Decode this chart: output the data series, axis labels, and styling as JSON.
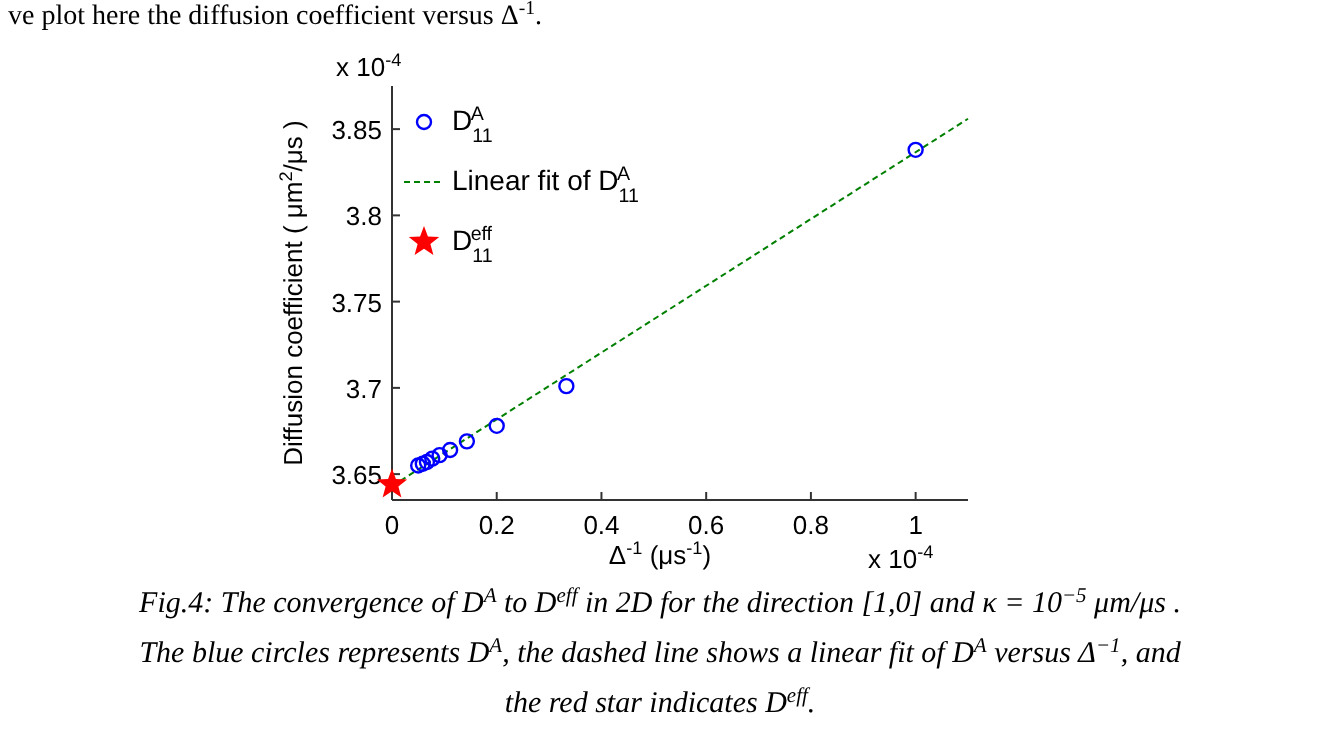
{
  "chart_data": {
    "type": "scatter",
    "xlabel": "Δ$^{-1}$ (μs$^{-1}$)",
    "ylabel": "Diffusion coefficient ( μm$^{2}$/μs )",
    "xlim": [
      0,
      1.1
    ],
    "ylim": [
      3.635,
      3.875
    ],
    "xticks": [
      0,
      0.2,
      0.4,
      0.6,
      0.8,
      1
    ],
    "yticks": [
      3.65,
      3.7,
      3.75,
      3.8,
      3.85
    ],
    "grid": false,
    "legend": "top left",
    "series": [
      {
        "name": "D$_{11}$$^{A}$",
        "type": "scatter",
        "marker": "circle",
        "color": "#0000ff",
        "x": [
          0.05,
          0.0588,
          0.0667,
          0.0769,
          0.0909,
          0.111,
          0.143,
          0.2,
          0.333,
          1
        ],
        "values": [
          3.655,
          3.656,
          3.657,
          3.659,
          3.661,
          3.664,
          3.669,
          3.678,
          3.701,
          3.838
        ]
      },
      {
        "name": "Linear fit of D$_{11}$$^{A}$",
        "type": "line",
        "line_style": "dashed",
        "color": "#008000",
        "x": [
          0,
          1.1
        ],
        "values": [
          3.643,
          3.856
        ]
      },
      {
        "name": "D$_{11}$$^{eff}$",
        "type": "scatter",
        "marker": "star",
        "color": "#ff0000",
        "x": [
          0
        ],
        "values": [
          3.644
        ]
      }
    ],
    "annotations": [
      "ve plot here the diffusion coefficient versus Δ$^{-1}$.",
      "x 10$^{-4}$",
      "x 10$^{-4}$",
      "Fig.4: The convergence of D$^{A}$ to D$^{eff}$ in 2D for the direction [1,0] and κ = 10$^{−5}$ μm/μs .",
      "The blue circles represents D$^{A}$, the dashed line shows a linear fit of D$^{A}$ versus Δ$^{−1}$, and",
      "the red star indicates D$^{eff}$."
    ]
  }
}
